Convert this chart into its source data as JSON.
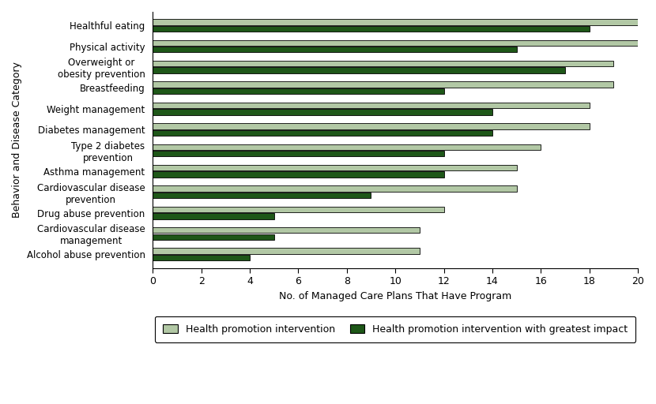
{
  "categories": [
    "Healthful eating",
    "Physical activity",
    "Overweight or\nobesity prevention",
    "Breastfeeding",
    "Weight management",
    "Diabetes management",
    "Type 2 diabetes\nprevention",
    "Asthma management",
    "Cardiovascular disease\nprevention",
    "Drug abuse prevention",
    "Cardiovascular disease\nmanagement",
    "Alcohol abuse prevention"
  ],
  "health_promotion": [
    20,
    20,
    19,
    19,
    18,
    18,
    16,
    15,
    15,
    12,
    11,
    11
  ],
  "greatest_impact": [
    18,
    15,
    17,
    12,
    14,
    14,
    12,
    12,
    9,
    5,
    5,
    4
  ],
  "color_promotion": "#b2c8a5",
  "color_impact": "#1e5718",
  "xlabel": "No. of Managed Care Plans That Have Program",
  "ylabel": "Behavior and Disease Category",
  "xlim": [
    0,
    20
  ],
  "xticks": [
    0,
    2,
    4,
    6,
    8,
    10,
    12,
    14,
    16,
    18,
    20
  ],
  "legend_promotion": "Health promotion intervention",
  "legend_impact": "Health promotion intervention with greatest impact",
  "bar_height": 0.28,
  "bar_gap": 0.04
}
